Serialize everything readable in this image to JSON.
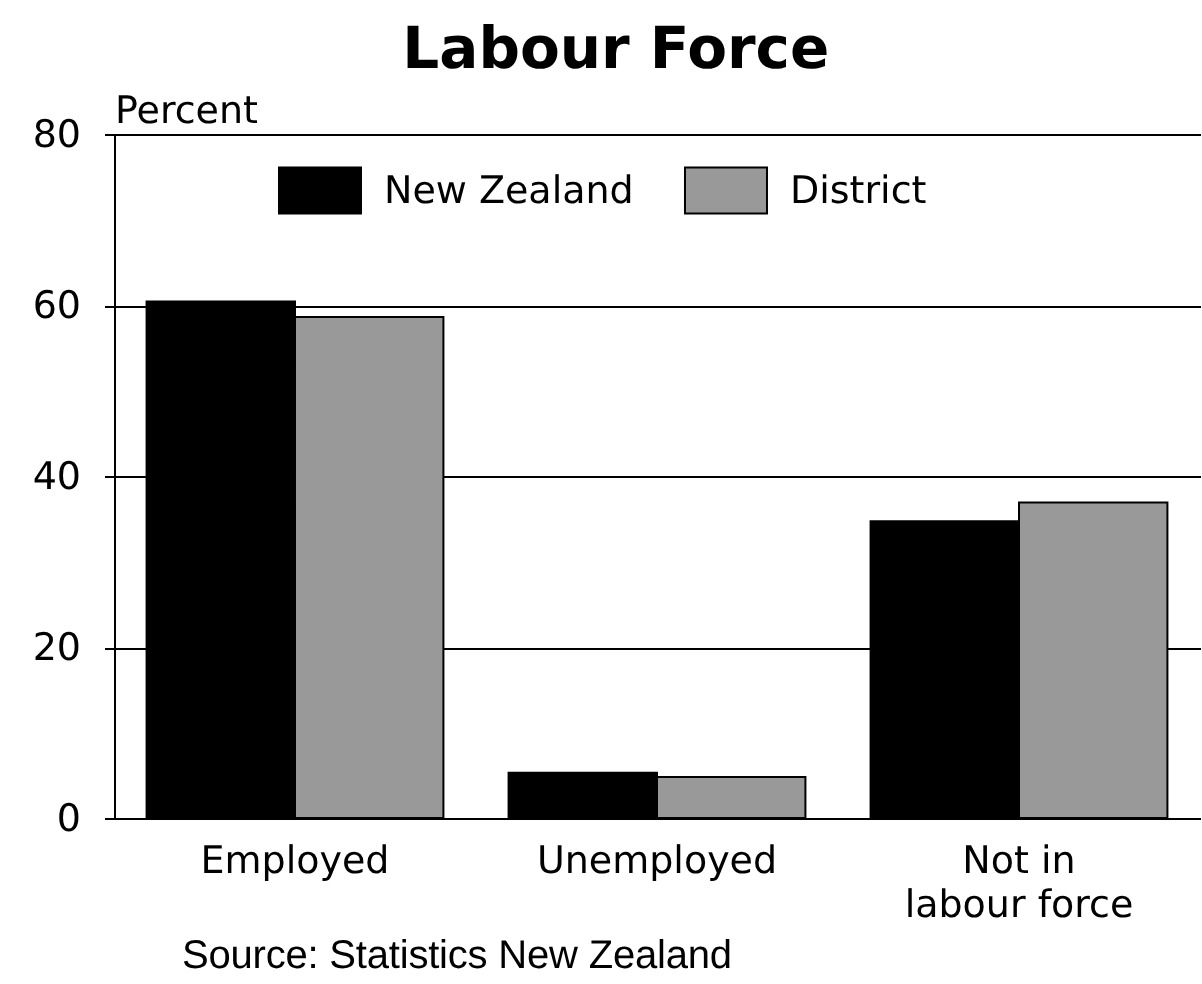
{
  "chart_data": {
    "type": "bar",
    "title": "Labour Force",
    "ylabel": "Percent",
    "categories": [
      "Employed",
      "Unemployed",
      "Not in labour force"
    ],
    "series": [
      {
        "name": "New Zealand",
        "color": "#000000",
        "values": [
          60.4,
          5.3,
          34.7
        ]
      },
      {
        "name": "District",
        "color": "#999999",
        "values": [
          58.6,
          4.8,
          36.9
        ]
      }
    ],
    "ylim": [
      0,
      80
    ],
    "yticks": [
      0,
      20,
      40,
      60,
      80
    ],
    "grid": "y",
    "legend": "top",
    "annotations": [
      "Source: Statistics New Zealand"
    ]
  }
}
